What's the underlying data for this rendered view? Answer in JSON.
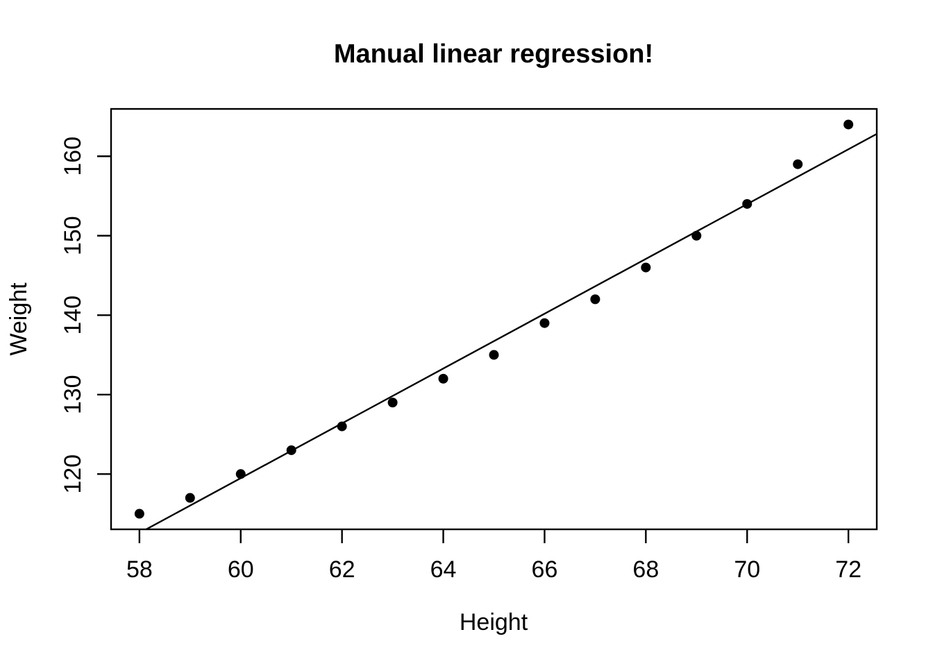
{
  "title": "Manual linear regression!",
  "axes": {
    "xlabel": "Height",
    "ylabel": "Weight"
  },
  "chart_data": {
    "type": "scatter",
    "title": "Manual linear regression!",
    "xlabel": "Height",
    "ylabel": "Weight",
    "x": [
      58,
      59,
      60,
      61,
      62,
      63,
      64,
      65,
      66,
      67,
      68,
      69,
      70,
      71,
      72
    ],
    "y": [
      115,
      117,
      120,
      123,
      126,
      129,
      132,
      135,
      139,
      142,
      146,
      150,
      154,
      159,
      164
    ],
    "x_ticks": [
      58,
      60,
      62,
      64,
      66,
      68,
      70,
      72
    ],
    "y_ticks": [
      120,
      130,
      140,
      150,
      160
    ],
    "xlim": [
      57.44,
      72.56
    ],
    "ylim": [
      113.04,
      165.96
    ],
    "grid": false,
    "legend": null,
    "regression_line": {
      "slope": 3.45,
      "intercept": -87.52
    },
    "point_color": "#000000",
    "line_color": "#000000",
    "axis_color": "#000000",
    "background": "#ffffff"
  }
}
